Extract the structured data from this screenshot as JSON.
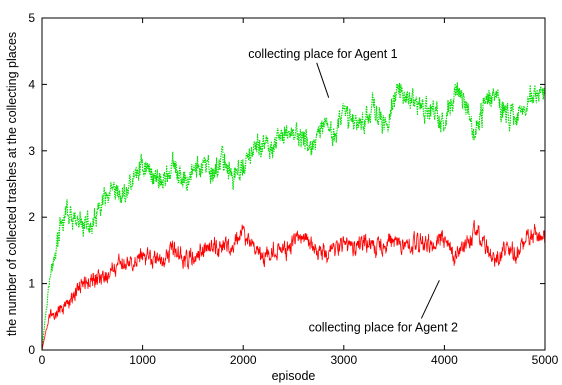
{
  "chart_data": {
    "type": "line",
    "title": "",
    "xlabel": "episode",
    "ylabel": "the number of collected trashes at the collecting places",
    "xlim": [
      0,
      5000
    ],
    "ylim": [
      0,
      5
    ],
    "xticks": [
      "0",
      "1000",
      "2000",
      "3000",
      "4000",
      "5000"
    ],
    "yticks": [
      "0",
      "1",
      "2",
      "3",
      "4",
      "5"
    ],
    "grid": false,
    "legend": "none",
    "series": [
      {
        "color": "#00dd00",
        "style": "dotted",
        "noise": 0.25,
        "x": [
          0,
          60,
          120,
          180,
          250,
          300,
          400,
          500,
          600,
          700,
          800,
          900,
          1000,
          1100,
          1200,
          1300,
          1400,
          1500,
          1600,
          1700,
          1800,
          1900,
          2000,
          2100,
          2200,
          2300,
          2400,
          2500,
          2600,
          2700,
          2800,
          2900,
          3000,
          3100,
          3200,
          3300,
          3400,
          3500,
          3600,
          3700,
          3800,
          3900,
          4000,
          4100,
          4200,
          4300,
          4400,
          4500,
          4600,
          4700,
          4800,
          4900,
          5000
        ],
        "y": [
          0,
          0.9,
          1.4,
          1.8,
          2.1,
          1.9,
          1.9,
          1.85,
          2.2,
          2.35,
          2.3,
          2.55,
          2.8,
          2.65,
          2.55,
          2.75,
          2.5,
          2.7,
          2.75,
          2.65,
          2.9,
          2.6,
          2.75,
          3.0,
          3.1,
          3.0,
          3.25,
          3.3,
          3.15,
          3.05,
          3.35,
          3.25,
          3.55,
          3.45,
          3.45,
          3.7,
          3.3,
          3.8,
          3.9,
          3.7,
          3.6,
          3.65,
          3.35,
          3.9,
          3.8,
          3.2,
          3.75,
          3.9,
          3.55,
          3.5,
          3.7,
          3.85,
          3.8
        ]
      },
      {
        "color": "#ff0000",
        "style": "solid",
        "noise": 0.2,
        "x": [
          0,
          40,
          80,
          130,
          200,
          300,
          400,
          500,
          600,
          700,
          800,
          900,
          1000,
          1100,
          1200,
          1300,
          1400,
          1500,
          1600,
          1700,
          1800,
          1900,
          2000,
          2100,
          2200,
          2300,
          2400,
          2500,
          2600,
          2700,
          2800,
          2900,
          3000,
          3100,
          3200,
          3300,
          3400,
          3500,
          3600,
          3700,
          3800,
          3900,
          4000,
          4100,
          4200,
          4300,
          4400,
          4500,
          4600,
          4700,
          4800,
          4900,
          5000
        ],
        "y": [
          0,
          0.3,
          0.55,
          0.5,
          0.6,
          0.8,
          1.0,
          1.05,
          1.1,
          1.2,
          1.3,
          1.35,
          1.45,
          1.35,
          1.35,
          1.5,
          1.3,
          1.45,
          1.5,
          1.55,
          1.55,
          1.6,
          1.75,
          1.55,
          1.4,
          1.5,
          1.45,
          1.65,
          1.7,
          1.55,
          1.45,
          1.55,
          1.6,
          1.5,
          1.65,
          1.5,
          1.6,
          1.7,
          1.5,
          1.65,
          1.55,
          1.6,
          1.7,
          1.4,
          1.55,
          1.75,
          1.6,
          1.3,
          1.55,
          1.45,
          1.7,
          1.75,
          1.65
        ]
      }
    ],
    "annotations": [
      {
        "text": "collecting place for Agent 1",
        "x": 2050,
        "y": 4.4,
        "target_x": 2850,
        "target_y": 3.8,
        "anchor": "start"
      },
      {
        "text": "collecting place for Agent 2",
        "x": 2650,
        "y": 0.28,
        "target_x": 3950,
        "target_y": 1.05,
        "anchor": "start"
      }
    ]
  }
}
